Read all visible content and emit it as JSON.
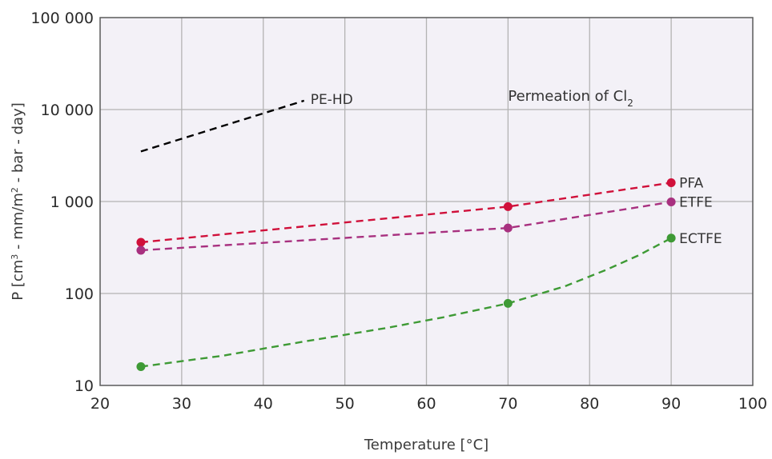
{
  "chart_data": {
    "type": "line",
    "xlabel": "Temperature [°C]",
    "ylabel": {
      "pre": "P [cm",
      "sup1": "3",
      "mid": " - mm/m",
      "sup2": "2",
      "post": " - bar - day]"
    },
    "annotation": {
      "text": "Permeation of Cl",
      "sub": "2",
      "x": 70,
      "y": 12500
    },
    "xlim": [
      20,
      100
    ],
    "ylim": [
      10,
      100000
    ],
    "yscale": "log",
    "grid": true,
    "x_ticks": [
      20,
      30,
      40,
      50,
      60,
      70,
      80,
      90,
      100
    ],
    "x_tick_labels": [
      "20",
      "30",
      "40",
      "50",
      "60",
      "70",
      "80",
      "90",
      "100"
    ],
    "y_ticks": [
      10,
      100,
      1000,
      10000,
      100000
    ],
    "y_tick_labels": [
      "10",
      "100",
      "1 000",
      "10 000",
      "100 000"
    ],
    "series": [
      {
        "name": "PE-HD",
        "color": "#000000",
        "markers": false,
        "points": [
          [
            25,
            3500
          ],
          [
            45,
            12500
          ]
        ]
      },
      {
        "name": "PFA",
        "color": "#d0103a",
        "markers": true,
        "points": [
          [
            25,
            360
          ],
          [
            70,
            880
          ],
          [
            90,
            1600
          ]
        ]
      },
      {
        "name": "ETFE",
        "color": "#a8307f",
        "markers": true,
        "points": [
          [
            25,
            295
          ],
          [
            70,
            515
          ],
          [
            90,
            990
          ]
        ]
      },
      {
        "name": "ECTFE",
        "color": "#3e9a35",
        "markers": true,
        "points": [
          [
            25,
            16
          ],
          [
            70,
            78
          ],
          [
            90,
            400
          ]
        ],
        "curve": [
          [
            25,
            16
          ],
          [
            35,
            21
          ],
          [
            45,
            30
          ],
          [
            55,
            42
          ],
          [
            62,
            55
          ],
          [
            70,
            78
          ],
          [
            77,
            120
          ],
          [
            82,
            180
          ],
          [
            86,
            260
          ],
          [
            90,
            400
          ]
        ]
      }
    ]
  },
  "colors": {
    "plot_background": "#f3f1f7",
    "grid": "#b3b3b3",
    "axis": "#5a5a5a"
  }
}
